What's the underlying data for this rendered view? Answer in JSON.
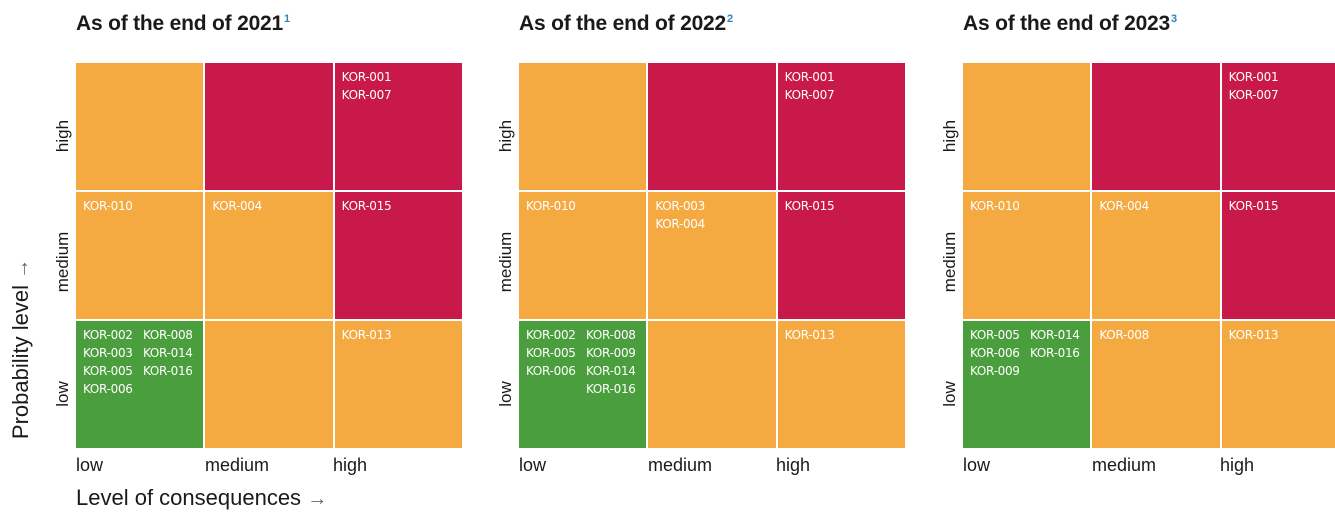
{
  "axis": {
    "y_title": "Probability level",
    "x_title": "Level of consequences",
    "arrow": "→",
    "y_levels": [
      "high",
      "medium",
      "low"
    ],
    "x_levels": [
      "low",
      "medium",
      "high"
    ]
  },
  "colors": {
    "red": "#c8194a",
    "orange": "#f4a941",
    "green": "#4b9e3d",
    "footnote": "#2a86c0"
  },
  "panels": [
    {
      "title": "As of the end of 2021",
      "footnote": "1",
      "rows": [
        [
          {
            "color": "orange",
            "codes": []
          },
          {
            "color": "red",
            "codes": []
          },
          {
            "color": "red",
            "codes": [
              "KOR-001",
              "KOR-007"
            ]
          }
        ],
        [
          {
            "color": "orange",
            "codes": [
              "KOR-010"
            ]
          },
          {
            "color": "orange",
            "codes": [
              "KOR-004"
            ]
          },
          {
            "color": "red",
            "codes": [
              "KOR-015"
            ]
          }
        ],
        [
          {
            "color": "green",
            "codes": [
              "KOR-002",
              "KOR-008",
              "KOR-003",
              "KOR-014",
              "KOR-005",
              "KOR-016",
              "KOR-006"
            ]
          },
          {
            "color": "orange",
            "codes": []
          },
          {
            "color": "orange",
            "codes": [
              "KOR-013"
            ]
          }
        ]
      ]
    },
    {
      "title": "As of the end of 2022",
      "footnote": "2",
      "rows": [
        [
          {
            "color": "orange",
            "codes": []
          },
          {
            "color": "red",
            "codes": []
          },
          {
            "color": "red",
            "codes": [
              "KOR-001",
              "KOR-007"
            ]
          }
        ],
        [
          {
            "color": "orange",
            "codes": [
              "KOR-010"
            ]
          },
          {
            "color": "orange",
            "codes": [
              "KOR-003",
              "KOR-004"
            ]
          },
          {
            "color": "red",
            "codes": [
              "KOR-015"
            ]
          }
        ],
        [
          {
            "color": "green",
            "codes": [
              "KOR-002",
              "KOR-008",
              "KOR-005",
              "KOR-009",
              "KOR-006",
              "KOR-014",
              "",
              "KOR-016"
            ]
          },
          {
            "color": "orange",
            "codes": []
          },
          {
            "color": "orange",
            "codes": [
              "KOR-013"
            ]
          }
        ]
      ]
    },
    {
      "title": "As of the end of 2023",
      "footnote": "3",
      "rows": [
        [
          {
            "color": "orange",
            "codes": []
          },
          {
            "color": "red",
            "codes": []
          },
          {
            "color": "red",
            "codes": [
              "KOR-001",
              "KOR-007"
            ]
          }
        ],
        [
          {
            "color": "orange",
            "codes": [
              "KOR-010"
            ]
          },
          {
            "color": "orange",
            "codes": [
              "KOR-004"
            ]
          },
          {
            "color": "red",
            "codes": [
              "KOR-015"
            ]
          }
        ],
        [
          {
            "color": "green",
            "codes": [
              "KOR-005",
              "KOR-014",
              "KOR-006",
              "KOR-016",
              "KOR-009"
            ]
          },
          {
            "color": "orange",
            "codes": [
              "KOR-008"
            ]
          },
          {
            "color": "orange",
            "codes": [
              "KOR-013"
            ]
          }
        ]
      ]
    }
  ]
}
